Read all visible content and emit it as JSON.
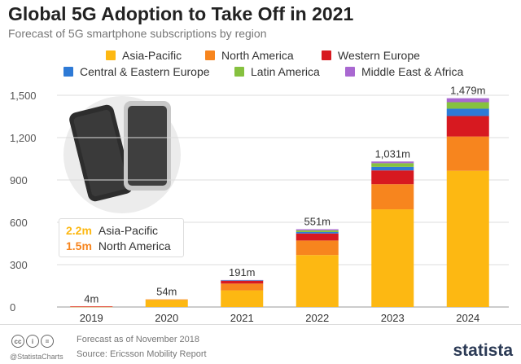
{
  "header": {
    "title": "Global 5G Adoption to Take Off in 2021",
    "subtitle": "Forecast of 5G smartphone subscriptions by region"
  },
  "colors": {
    "asia_pacific": "#FDB812",
    "north_america": "#F7851E",
    "western_europe": "#D71920",
    "central_eastern_europe": "#2E7AD6",
    "latin_america": "#86C13F",
    "middle_east_africa": "#A968D1"
  },
  "chart_data": {
    "type": "bar",
    "stacked": true,
    "categories": [
      "2019",
      "2020",
      "2021",
      "2022",
      "2023",
      "2024"
    ],
    "series": [
      {
        "name": "Asia-Pacific",
        "values": [
          2.2,
          50,
          118,
          368,
          692,
          965
        ]
      },
      {
        "name": "North America",
        "values": [
          1.5,
          4,
          48,
          103,
          178,
          243
        ]
      },
      {
        "name": "Western Europe",
        "values": [
          0.3,
          0,
          20,
          50,
          98,
          145
        ]
      },
      {
        "name": "Central & Eastern Europe",
        "values": [
          0,
          0,
          2,
          10,
          25,
          52
        ]
      },
      {
        "name": "Latin America",
        "values": [
          0,
          0,
          2,
          12,
          26,
          46
        ]
      },
      {
        "name": "Middle East & Africa",
        "values": [
          0,
          0,
          1,
          8,
          12,
          28
        ]
      }
    ],
    "totals": [
      "4m",
      "54m",
      "191m",
      "551m",
      "1,031m",
      "1,479m"
    ],
    "yticks": [
      "0",
      "300",
      "600",
      "900",
      "1,200",
      "1,500"
    ],
    "ylim": [
      0,
      1500
    ],
    "grid": true,
    "legend_position": "top"
  },
  "callout": {
    "rows": [
      {
        "value": "2.2m",
        "label": "Asia-Pacific"
      },
      {
        "value": "1.5m",
        "label": "North America"
      }
    ]
  },
  "footer": {
    "handle": "@StatistaCharts",
    "note": "Forecast as of November 2018",
    "source": "Source: Ericsson Mobility Report",
    "brand": "statista"
  }
}
